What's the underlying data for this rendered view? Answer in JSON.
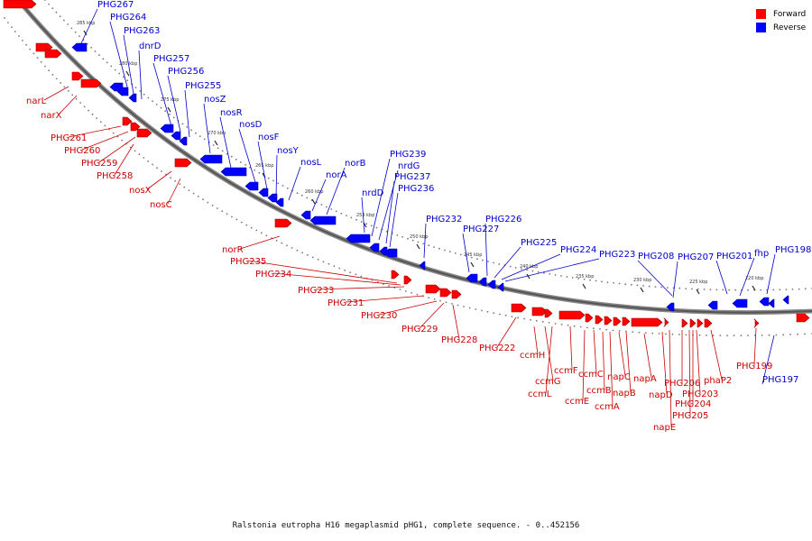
{
  "legend": {
    "forward_label": "Forward",
    "reverse_label": "Reverse",
    "forward_color": "#ff0000",
    "reverse_color": "#0000ff"
  },
  "caption": "Ralstonia eutropha H16 megaplasmid pHG1, complete sequence. - 0..452156",
  "ticks": [
    "285 kbp",
    "280 kbp",
    "275 kbp",
    "270 kbp",
    "265 kbp",
    "260 kbp",
    "255 kbp",
    "250 kbp",
    "245 kbp",
    "240 kbp",
    "235 kbp",
    "230 kbp",
    "225 kbp",
    "220 kbp"
  ],
  "reverse_genes": [
    "PHG267",
    "PHG264",
    "PHG263",
    "dnrD",
    "PHG257",
    "PHG256",
    "PHG255",
    "nosZ",
    "nosR",
    "nosD",
    "nosF",
    "nosY",
    "nosL",
    "norA",
    "norB",
    "nrdD",
    "PHG239",
    "nrdG",
    "PHG237",
    "PHG236",
    "PHG232",
    "PHG227",
    "PHG226",
    "PHG225",
    "PHG224",
    "PHG223",
    "PHG208",
    "PHG207",
    "PHG201",
    "fhp",
    "PHG198",
    "PHG197"
  ],
  "forward_genes": [
    "narL",
    "narX",
    "PHG261",
    "PHG260",
    "PHG259",
    "PHG258",
    "nosX",
    "nosC",
    "norR",
    "PHG235",
    "PHG234",
    "PHG233",
    "PHG231",
    "PHG230",
    "PHG229",
    "PHG228",
    "PHG222",
    "ccmH",
    "ccmG",
    "ccmL",
    "ccmF",
    "ccmE",
    "ccmC",
    "ccmB",
    "ccmA",
    "napC",
    "napB",
    "napA",
    "napD",
    "napE",
    "PHG206",
    "PHG205",
    "PHG204",
    "PHG203",
    "phaP2",
    "PHG199"
  ]
}
